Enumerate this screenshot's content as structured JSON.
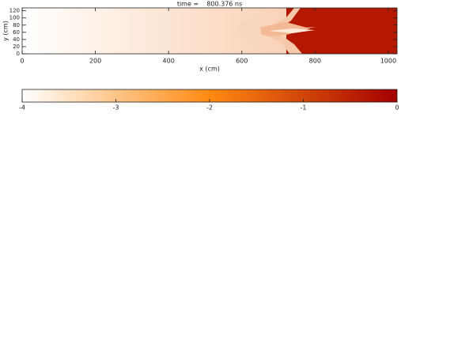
{
  "chart_data": {
    "type": "image",
    "title": "time =    800.376 ns",
    "xlabel": "x (cm)",
    "ylabel": "y (cm)",
    "xlim": [
      0,
      1024
    ],
    "xticks": [
      0,
      200,
      400,
      600,
      800,
      1000
    ],
    "ylim": [
      0,
      128
    ],
    "yticks": [
      0,
      20,
      40,
      60,
      80,
      100,
      120
    ],
    "colorbar": {
      "clim": [
        -4,
        0
      ],
      "ticks": [
        -4,
        -3,
        -2,
        -1,
        0
      ],
      "colorscale": [
        [
          -4,
          "#ffffff"
        ],
        [
          -2,
          "#ff8a12"
        ],
        [
          0,
          "#a30000"
        ]
      ]
    }
  }
}
